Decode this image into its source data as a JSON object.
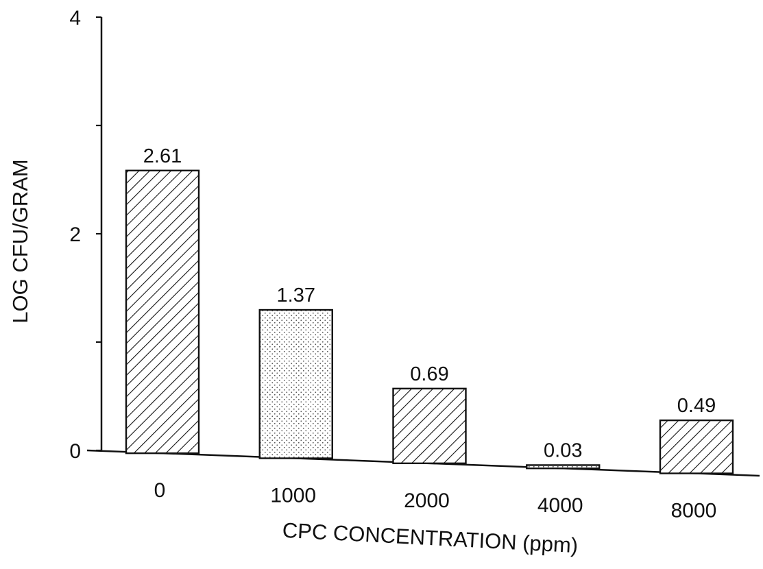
{
  "chart_data": {
    "type": "bar",
    "title": "",
    "xlabel": "CPC CONCENTRATION (ppm)",
    "ylabel": "LOG CFU/GRAM",
    "categories": [
      "0",
      "1000",
      "2000",
      "4000",
      "8000"
    ],
    "values": [
      2.61,
      1.37,
      0.69,
      0.03,
      0.49
    ],
    "data_labels": [
      "2.61",
      "1.37",
      "0.69",
      "0.03",
      "0.49"
    ],
    "patterns": [
      "diagonal-hatch",
      "dotted",
      "diagonal-hatch",
      "dotted",
      "diagonal-hatch"
    ],
    "ylim": [
      0,
      4
    ],
    "yticks": [
      "0",
      "2",
      "4"
    ],
    "grid": false,
    "legend": "none",
    "colors": {
      "ink": "#111111",
      "background": "#ffffff",
      "stipple": "#555555"
    }
  }
}
